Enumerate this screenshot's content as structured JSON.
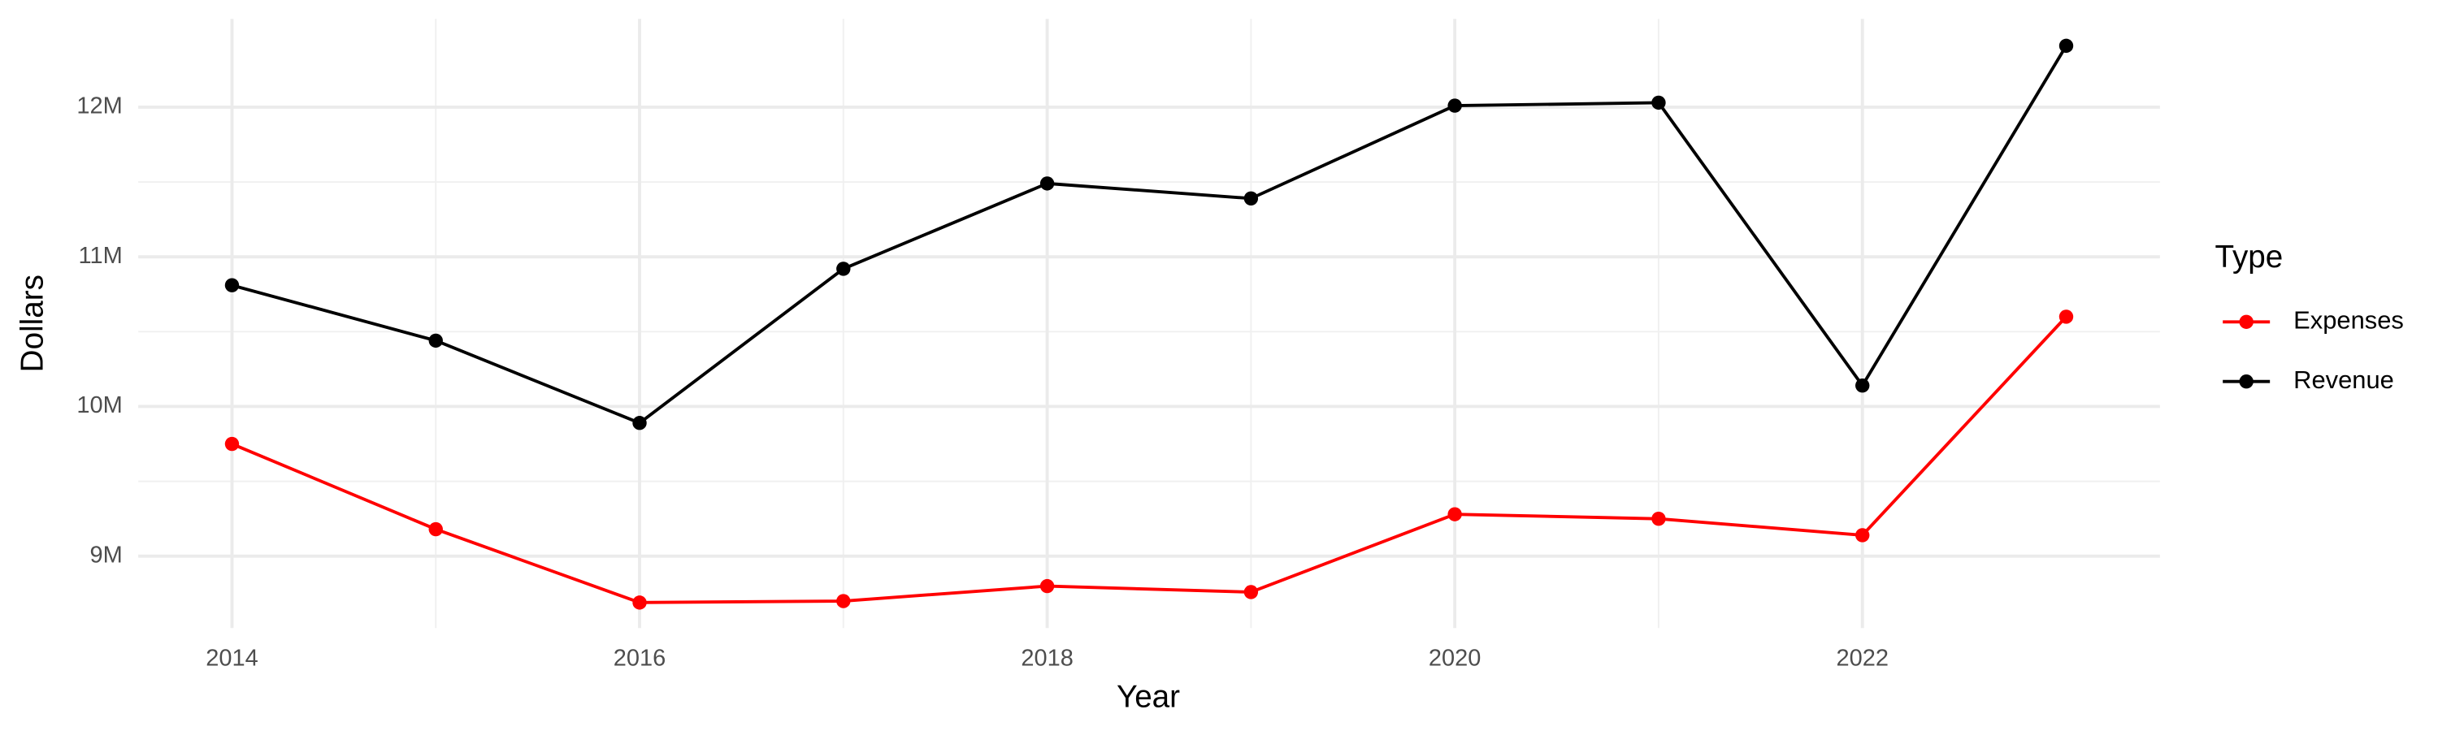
{
  "chart_data": {
    "type": "line",
    "x_label": "Year",
    "y_label": "Dollars",
    "legend_title": "Type",
    "legend": "right",
    "grid": true,
    "x": [
      2014,
      2015,
      2016,
      2017,
      2018,
      2019,
      2020,
      2021,
      2022,
      2023
    ],
    "xlim": [
      2013.54,
      2023.46
    ],
    "xticks": [
      2014,
      2016,
      2018,
      2020,
      2022
    ],
    "ylim": [
      8520000,
      12590000
    ],
    "yticks": [
      {
        "value": 9000000,
        "label": "9M"
      },
      {
        "value": 10000000,
        "label": "10M"
      },
      {
        "value": 11000000,
        "label": "11M"
      },
      {
        "value": 12000000,
        "label": "12M"
      }
    ],
    "series": [
      {
        "name": "Expenses",
        "color": "#ff0000",
        "values": [
          9750000,
          9180000,
          8690000,
          8700000,
          8800000,
          8760000,
          9280000,
          9250000,
          9140000,
          10600000
        ]
      },
      {
        "name": "Revenue",
        "color": "#000000",
        "values": [
          10810000,
          10440000,
          9890000,
          10920000,
          11490000,
          11390000,
          12010000,
          12030000,
          10140000,
          12410000
        ]
      }
    ]
  }
}
